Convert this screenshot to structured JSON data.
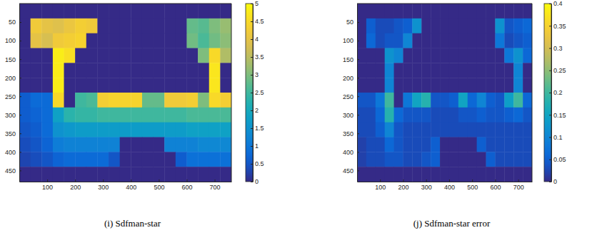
{
  "chart_data": [
    {
      "type": "heatmap",
      "caption": "(i) Sdfman-star",
      "x": [
        20,
        60,
        100,
        140,
        180,
        220,
        260,
        300,
        340,
        380,
        420,
        460,
        500,
        540,
        580,
        620,
        660,
        700,
        740
      ],
      "y": [
        20,
        60,
        100,
        140,
        180,
        220,
        260,
        300,
        340,
        380,
        420,
        460
      ],
      "z": [
        [
          0,
          0,
          0,
          0,
          0,
          0,
          0,
          0,
          0,
          0,
          0,
          0,
          0,
          0,
          0,
          0,
          0,
          0,
          0
        ],
        [
          0,
          4.2,
          4.0,
          3.9,
          4.1,
          4.3,
          4.2,
          0,
          0,
          0,
          0,
          0,
          0,
          0,
          0,
          2.8,
          2.7,
          3.0,
          3.2
        ],
        [
          0,
          4.0,
          3.8,
          4.2,
          4.3,
          4.4,
          0,
          0,
          0,
          0,
          0,
          0,
          0,
          0,
          0,
          2.9,
          2.6,
          2.9,
          3.1
        ],
        [
          0,
          0,
          0,
          4.8,
          4.6,
          0,
          0,
          0,
          0,
          0,
          0,
          0,
          0,
          0,
          0,
          0,
          3.0,
          4.5,
          3.4
        ],
        [
          0,
          0,
          0,
          4.8,
          0,
          0,
          0,
          0,
          0,
          0,
          0,
          0,
          0,
          0,
          0,
          0,
          0,
          4.7,
          0
        ],
        [
          0,
          0,
          0,
          4.8,
          0,
          0,
          0,
          0,
          0,
          0,
          0,
          0,
          0,
          0,
          0,
          0,
          0,
          4.7,
          0
        ],
        [
          0.6,
          0.8,
          0.8,
          4.5,
          0,
          2.5,
          2.6,
          4.3,
          4.4,
          4.4,
          4.4,
          2.8,
          2.8,
          4.2,
          4.2,
          4.3,
          3.0,
          4.5,
          4.3
        ],
        [
          0.6,
          0.7,
          0.8,
          1.8,
          2.3,
          2.4,
          2.4,
          2.5,
          2.5,
          2.5,
          2.5,
          2.5,
          2.5,
          2.5,
          2.5,
          2.6,
          2.6,
          2.6,
          2.6
        ],
        [
          0.5,
          0.6,
          0.8,
          1.5,
          1.6,
          1.7,
          1.7,
          1.7,
          1.7,
          1.7,
          1.7,
          1.7,
          1.7,
          1.7,
          1.7,
          1.8,
          1.8,
          1.8,
          1.8
        ],
        [
          0.4,
          0.5,
          0.7,
          1.1,
          1.2,
          1.2,
          1.2,
          1.2,
          1.2,
          0,
          0,
          0,
          0,
          1.2,
          1.2,
          1.2,
          1.3,
          1.3,
          1.3
        ],
        [
          0.3,
          0.4,
          0.5,
          0.7,
          0.8,
          0.8,
          0.8,
          0.8,
          0.5,
          0,
          0,
          0,
          0,
          0,
          0.6,
          0.9,
          0.9,
          0.9,
          0.9
        ],
        [
          0,
          0,
          0,
          0,
          0,
          0,
          0,
          0,
          0,
          0,
          0,
          0,
          0,
          0,
          0,
          0,
          0,
          0,
          0
        ]
      ],
      "xlim": [
        0,
        760
      ],
      "ylim": [
        0,
        480
      ],
      "xticks": [
        100,
        200,
        300,
        400,
        500,
        600,
        700
      ],
      "yticks": [
        50,
        100,
        150,
        200,
        250,
        300,
        350,
        400,
        450
      ],
      "colorbar_lim": [
        0,
        5
      ],
      "colorbar_ticks": [
        0,
        0.5,
        1,
        1.5,
        2,
        2.5,
        3,
        3.5,
        4,
        4.5,
        5
      ]
    },
    {
      "type": "heatmap",
      "caption": "(j) Sdfman-star error",
      "x": [
        20,
        60,
        100,
        140,
        180,
        220,
        260,
        300,
        340,
        380,
        420,
        460,
        500,
        540,
        580,
        620,
        660,
        700,
        740
      ],
      "y": [
        20,
        60,
        100,
        140,
        180,
        220,
        260,
        300,
        340,
        380,
        420,
        460
      ],
      "z": [
        [
          0,
          0,
          0,
          0,
          0,
          0,
          0,
          0,
          0,
          0,
          0,
          0,
          0,
          0,
          0,
          0,
          0,
          0,
          0
        ],
        [
          0,
          0.05,
          0.03,
          0.03,
          0.04,
          0.05,
          0.12,
          0,
          0,
          0,
          0,
          0,
          0,
          0,
          0,
          0.12,
          0.04,
          0.05,
          0.06
        ],
        [
          0,
          0.06,
          0.03,
          0.04,
          0.04,
          0.1,
          0,
          0,
          0,
          0,
          0,
          0,
          0,
          0,
          0,
          0.08,
          0.03,
          0.04,
          0.05
        ],
        [
          0,
          0,
          0,
          0.12,
          0.1,
          0,
          0,
          0,
          0,
          0,
          0,
          0,
          0,
          0,
          0,
          0,
          0.08,
          0.12,
          0.06
        ],
        [
          0,
          0,
          0,
          0.1,
          0,
          0,
          0,
          0,
          0,
          0,
          0,
          0,
          0,
          0,
          0,
          0,
          0,
          0.1,
          0
        ],
        [
          0,
          0,
          0,
          0.1,
          0,
          0,
          0,
          0,
          0,
          0,
          0,
          0,
          0,
          0,
          0,
          0,
          0,
          0.1,
          0
        ],
        [
          0.04,
          0.04,
          0.08,
          0.2,
          0,
          0.08,
          0.15,
          0.18,
          0.04,
          0.04,
          0.05,
          0.15,
          0.06,
          0.1,
          0.05,
          0.04,
          0.14,
          0.2,
          0.06
        ],
        [
          0.03,
          0.03,
          0.06,
          0.18,
          0.06,
          0.04,
          0.04,
          0.04,
          0.03,
          0.03,
          0.03,
          0.04,
          0.04,
          0.05,
          0.04,
          0.04,
          0.05,
          0.06,
          0.04
        ],
        [
          0.03,
          0.03,
          0.05,
          0.1,
          0.04,
          0.03,
          0.03,
          0.03,
          0.03,
          0.03,
          0.03,
          0.03,
          0.03,
          0.03,
          0.03,
          0.03,
          0.03,
          0.03,
          0.03
        ],
        [
          0.02,
          0.03,
          0.03,
          0.06,
          0.04,
          0.03,
          0.03,
          0.03,
          0.05,
          0,
          0,
          0,
          0,
          0.05,
          0.03,
          0.03,
          0.03,
          0.03,
          0.03
        ],
        [
          0.02,
          0.03,
          0.03,
          0.04,
          0.04,
          0.03,
          0.03,
          0.04,
          0.05,
          0,
          0,
          0,
          0,
          0,
          0.05,
          0.03,
          0.03,
          0.03,
          0.03
        ],
        [
          0,
          0,
          0,
          0,
          0,
          0,
          0,
          0,
          0,
          0,
          0,
          0,
          0,
          0,
          0,
          0,
          0,
          0,
          0
        ]
      ],
      "xlim": [
        0,
        760
      ],
      "ylim": [
        0,
        480
      ],
      "xticks": [
        100,
        200,
        300,
        400,
        500,
        600,
        700
      ],
      "yticks": [
        50,
        100,
        150,
        200,
        250,
        300,
        350,
        400,
        450
      ],
      "colorbar_lim": [
        0,
        0.4
      ],
      "colorbar_ticks": [
        0,
        0.05,
        0.1,
        0.15,
        0.2,
        0.25,
        0.3,
        0.35,
        0.4
      ]
    }
  ]
}
